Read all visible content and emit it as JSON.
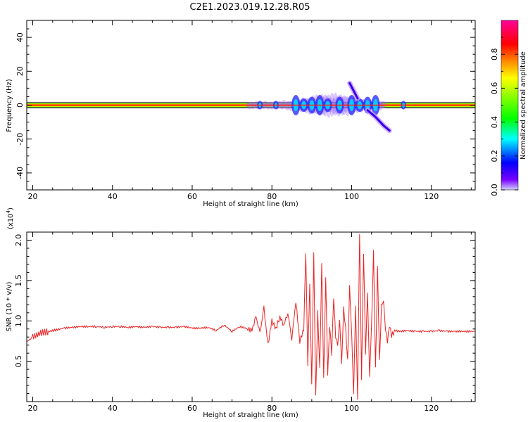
{
  "figure": {
    "title": "C2E1.2023.019.12.28.R05"
  },
  "colors": {
    "frame": "#000000",
    "snr_line": "#ee2222"
  },
  "chart_data": [
    {
      "type": "heatmap",
      "xlabel": "Height of straight line (km)",
      "ylabel": "Frequency (Hz)",
      "xlim": [
        18.5,
        131
      ],
      "ylim": [
        -50,
        50
      ],
      "xticks": [
        20,
        40,
        60,
        80,
        100,
        120
      ],
      "yticks": [
        -40,
        -20,
        0,
        20,
        40
      ],
      "colorbar": {
        "label": "Normalized spectral amplitude",
        "range": [
          0,
          1
        ],
        "ticks": [
          "0.0",
          "0.2",
          "0.4",
          "0.6",
          "0.8"
        ],
        "colormap": "hsv-rainbow (violet -> blue -> cyan -> green -> yellow -> red -> magenta)"
      },
      "features": {
        "carrier_band_hz": 0,
        "spread_region_km": [
          74,
          108
        ],
        "rising_trace": {
          "x": [
            99.5,
            101.5
          ],
          "y": [
            13,
            4
          ]
        },
        "falling_trace": {
          "x": [
            104,
            106,
            108,
            109.5
          ],
          "y": [
            -3,
            -7,
            -12,
            -15
          ]
        },
        "blobs_km": [
          77,
          81,
          86,
          88,
          90,
          92,
          94,
          97,
          100,
          102,
          104,
          106,
          113
        ]
      }
    },
    {
      "type": "line",
      "xlabel": "Height of straight line (km)",
      "ylabel": "SNR (10 * v/v)",
      "y_scale_label": "(x10",
      "y_scale_exp": "4",
      "y_scale_close": ")",
      "xlim": [
        18.5,
        131
      ],
      "ylim": [
        0,
        2.1
      ],
      "xticks": [
        20,
        40,
        60,
        80,
        100,
        120
      ],
      "yticks": [
        0.5,
        1.0,
        1.5,
        2.0
      ],
      "ytick_labels": [
        "0.5",
        "1.0",
        "1.5",
        "2.0"
      ],
      "series": [
        {
          "x": [
            18.5,
            20,
            22,
            24,
            26,
            28,
            30,
            32,
            34,
            36,
            38,
            40,
            42,
            44,
            46,
            48,
            50,
            52,
            54,
            56,
            58,
            60,
            62,
            64,
            66,
            68,
            70,
            72,
            74,
            75,
            76,
            77,
            78,
            79,
            80,
            81,
            82,
            83,
            84,
            85,
            86,
            87,
            88,
            88.5,
            89,
            89.5,
            90,
            90.5,
            91,
            91.5,
            92,
            92.5,
            93,
            93.5,
            94,
            94.5,
            95,
            95.5,
            96,
            96.5,
            97,
            97.5,
            98,
            98.5,
            99,
            99.5,
            100,
            100.5,
            101,
            101.5,
            102,
            102.5,
            103,
            103.5,
            104,
            104.5,
            105,
            105.5,
            106,
            106.5,
            107,
            107.5,
            108,
            108.5,
            109,
            109.5,
            110,
            111,
            112,
            114,
            116,
            118,
            120,
            122,
            124,
            126,
            128,
            131
          ],
          "y": [
            0.74,
            0.8,
            0.85,
            0.87,
            0.89,
            0.91,
            0.92,
            0.93,
            0.93,
            0.93,
            0.92,
            0.93,
            0.93,
            0.92,
            0.93,
            0.92,
            0.93,
            0.92,
            0.92,
            0.92,
            0.93,
            0.91,
            0.91,
            0.92,
            0.88,
            0.95,
            0.87,
            0.93,
            0.9,
            0.88,
            1.05,
            0.85,
            1.16,
            0.7,
            1.0,
            0.9,
            1.05,
            0.95,
            1.1,
            0.78,
            1.25,
            0.75,
            0.9,
            1.85,
            0.45,
            1.45,
            0.2,
            1.82,
            0.05,
            1.1,
            0.4,
            1.7,
            0.3,
            1.55,
            0.35,
            0.95,
            0.6,
            1.3,
            0.8,
            0.7,
            1.0,
            0.45,
            1.15,
            0.9,
            0.5,
            1.42,
            0.85,
            0.1,
            1.2,
            0.05,
            2.1,
            0.3,
            1.85,
            0.6,
            1.35,
            0.3,
            0.95,
            1.85,
            0.4,
            1.65,
            0.5,
            1.2,
            1.25,
            0.9,
            0.75,
            0.95,
            0.82,
            0.88,
            0.87,
            0.88,
            0.87,
            0.87,
            0.87,
            0.88,
            0.87,
            0.87,
            0.87,
            0.87
          ]
        }
      ]
    }
  ]
}
